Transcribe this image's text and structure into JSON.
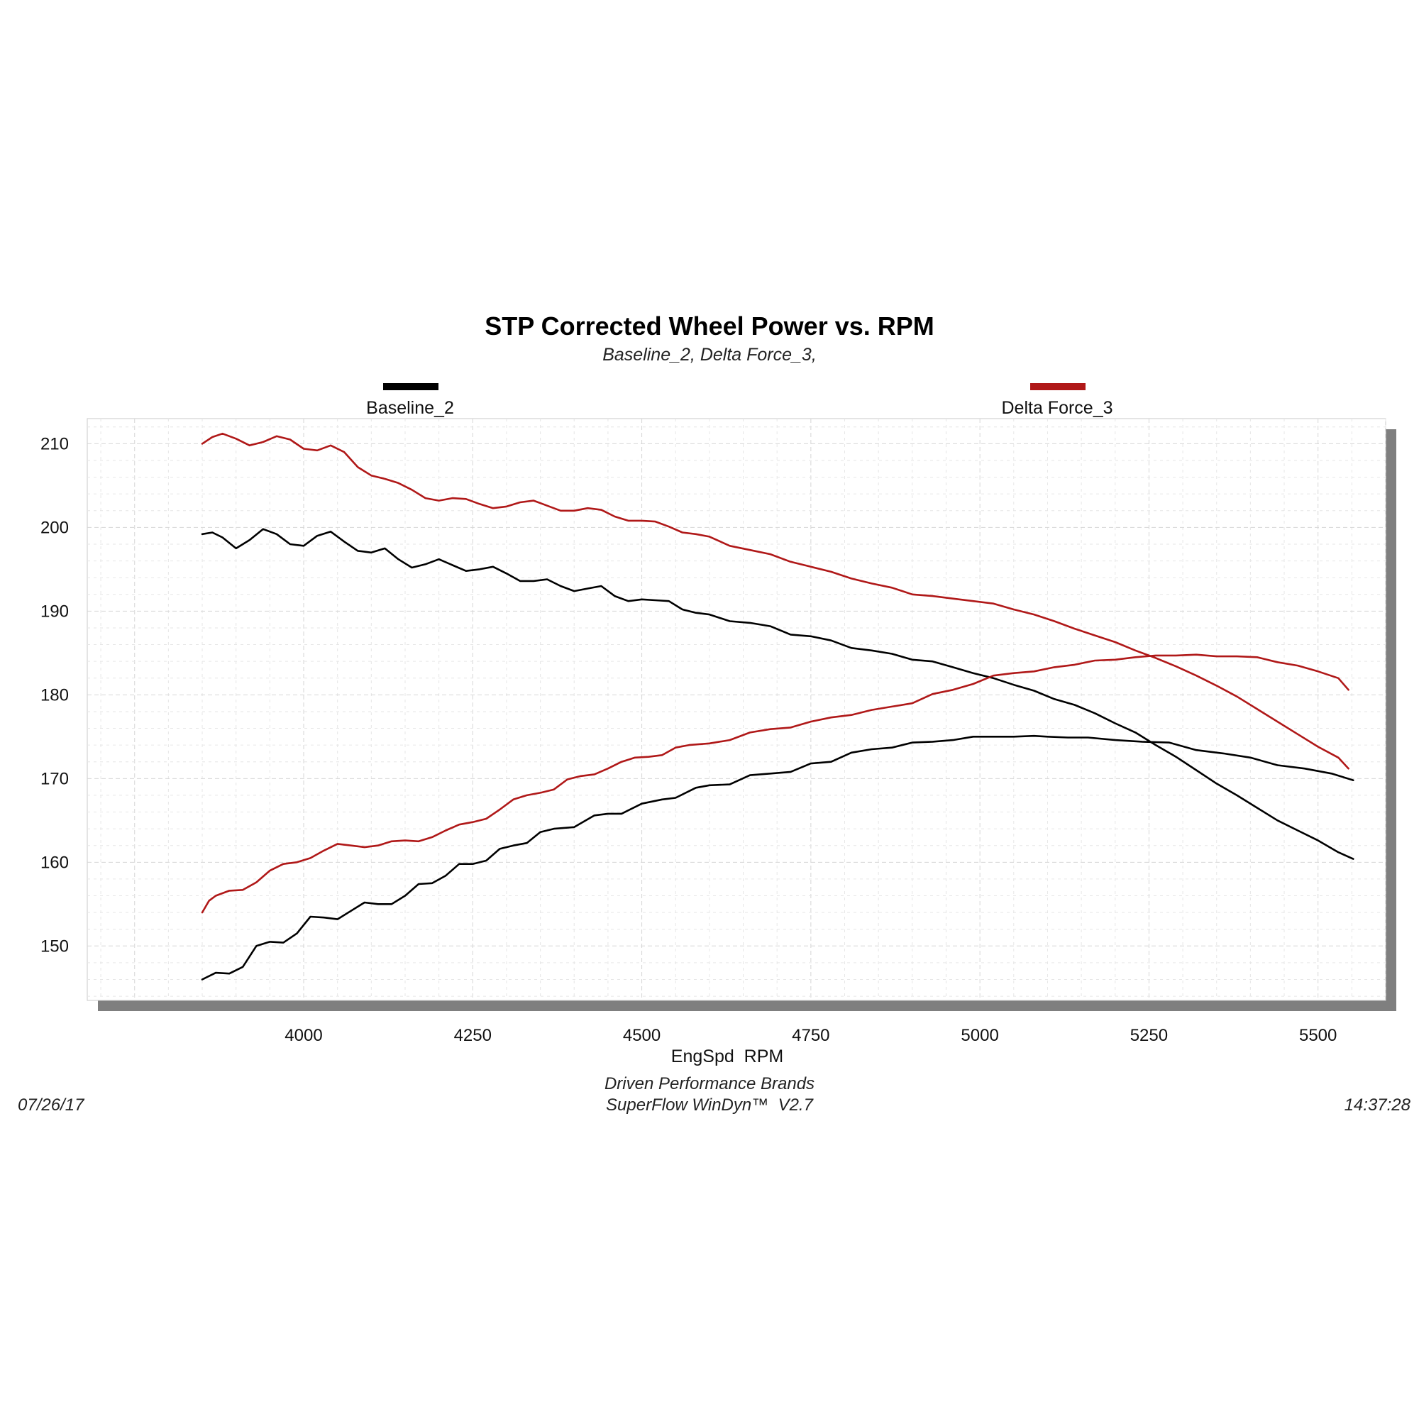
{
  "chart_data": {
    "type": "line",
    "title": "STP Corrected Wheel Power vs. RPM",
    "subtitle": "Baseline_2, Delta Force_3,",
    "xlabel": "EngSpd  RPM",
    "ylabel": "",
    "xlim": [
      3680,
      5600
    ],
    "ylim": [
      143.5,
      213
    ],
    "xticks": [
      4000,
      4250,
      4500,
      4750,
      5000,
      5250,
      5500
    ],
    "yticks": [
      150,
      160,
      170,
      180,
      190,
      200,
      210
    ],
    "grid": true,
    "legend_position": "top",
    "series": [
      {
        "name": "Baseline_2",
        "color": "#000000",
        "curves": [
          {
            "label": "power_up",
            "x": [
              3850,
              3870,
              3890,
              3910,
              3930,
              3950,
              3970,
              3990,
              4010,
              4030,
              4050,
              4070,
              4090,
              4110,
              4130,
              4150,
              4170,
              4190,
              4210,
              4230,
              4250,
              4270,
              4290,
              4310,
              4330,
              4350,
              4370,
              4400,
              4430,
              4450,
              4470,
              4500,
              4530,
              4550,
              4580,
              4600,
              4630,
              4660,
              4690,
              4720,
              4750,
              4780,
              4810,
              4840,
              4870,
              4900,
              4930,
              4960,
              4990,
              5020,
              5050,
              5080,
              5100,
              5130,
              5160,
              5200,
              5240,
              5280,
              5320,
              5360,
              5400,
              5440,
              5480,
              5520,
              5552
            ],
            "y": [
              146.0,
              146.8,
              146.7,
              147.5,
              150.0,
              150.5,
              150.4,
              151.5,
              153.5,
              153.4,
              153.2,
              154.2,
              155.2,
              155.0,
              155.0,
              156.0,
              157.4,
              157.5,
              158.4,
              159.8,
              159.8,
              160.2,
              161.6,
              162.0,
              162.3,
              163.6,
              164.0,
              164.2,
              165.6,
              165.8,
              165.8,
              167.0,
              167.5,
              167.7,
              168.9,
              169.2,
              169.3,
              170.4,
              170.6,
              170.8,
              171.8,
              172.0,
              173.1,
              173.5,
              173.7,
              174.3,
              174.4,
              174.6,
              175.0,
              175.0,
              175.0,
              175.1,
              175.0,
              174.9,
              174.9,
              174.6,
              174.4,
              174.3,
              173.4,
              173.0,
              172.5,
              171.6,
              171.2,
              170.6,
              169.8
            ]
          },
          {
            "label": "torque_down",
            "x": [
              3850,
              3865,
              3880,
              3900,
              3920,
              3940,
              3960,
              3980,
              4000,
              4020,
              4040,
              4060,
              4080,
              4100,
              4120,
              4140,
              4160,
              4180,
              4200,
              4220,
              4240,
              4260,
              4280,
              4300,
              4320,
              4340,
              4360,
              4380,
              4400,
              4420,
              4440,
              4460,
              4480,
              4500,
              4520,
              4540,
              4560,
              4580,
              4600,
              4630,
              4660,
              4690,
              4720,
              4750,
              4780,
              4810,
              4840,
              4870,
              4900,
              4930,
              4960,
              4990,
              5020,
              5050,
              5080,
              5110,
              5140,
              5170,
              5200,
              5230,
              5260,
              5290,
              5320,
              5350,
              5380,
              5410,
              5440,
              5470,
              5500,
              5530,
              5552
            ],
            "y": [
              199.2,
              199.4,
              198.8,
              197.5,
              198.5,
              199.8,
              199.2,
              198.0,
              197.8,
              199.0,
              199.5,
              198.3,
              197.2,
              197.0,
              197.5,
              196.2,
              195.2,
              195.6,
              196.2,
              195.5,
              194.8,
              195.0,
              195.3,
              194.5,
              193.6,
              193.6,
              193.8,
              193.0,
              192.4,
              192.7,
              193.0,
              191.8,
              191.2,
              191.4,
              191.3,
              191.2,
              190.2,
              189.8,
              189.6,
              188.8,
              188.6,
              188.2,
              187.2,
              187.0,
              186.5,
              185.6,
              185.3,
              184.9,
              184.2,
              184.0,
              183.3,
              182.6,
              182.0,
              181.2,
              180.5,
              179.5,
              178.8,
              177.8,
              176.6,
              175.5,
              174.0,
              172.6,
              171.0,
              169.4,
              168.0,
              166.5,
              165.0,
              163.8,
              162.6,
              161.2,
              160.4
            ]
          }
        ]
      },
      {
        "name": "Delta Force_3",
        "color": "#b01818",
        "curves": [
          {
            "label": "power_up",
            "x": [
              3850,
              3860,
              3870,
              3890,
              3910,
              3930,
              3950,
              3970,
              3990,
              4010,
              4030,
              4050,
              4070,
              4090,
              4110,
              4130,
              4150,
              4170,
              4190,
              4210,
              4230,
              4250,
              4270,
              4290,
              4310,
              4330,
              4350,
              4370,
              4390,
              4410,
              4430,
              4450,
              4470,
              4490,
              4510,
              4530,
              4550,
              4570,
              4600,
              4630,
              4660,
              4690,
              4720,
              4750,
              4780,
              4810,
              4840,
              4870,
              4900,
              4930,
              4960,
              4990,
              5020,
              5050,
              5080,
              5110,
              5140,
              5170,
              5200,
              5230,
              5260,
              5290,
              5320,
              5350,
              5380,
              5410,
              5440,
              5470,
              5500,
              5530,
              5545
            ],
            "y": [
              154.0,
              155.4,
              156.0,
              156.6,
              156.7,
              157.6,
              159.0,
              159.8,
              160.0,
              160.5,
              161.4,
              162.2,
              162.0,
              161.8,
              162.0,
              162.5,
              162.6,
              162.5,
              163.0,
              163.8,
              164.5,
              164.8,
              165.2,
              166.3,
              167.5,
              168.0,
              168.3,
              168.7,
              169.9,
              170.3,
              170.5,
              171.2,
              172.0,
              172.5,
              172.6,
              172.8,
              173.7,
              174.0,
              174.2,
              174.6,
              175.5,
              175.9,
              176.1,
              176.8,
              177.3,
              177.6,
              178.2,
              178.6,
              179.0,
              180.1,
              180.6,
              181.3,
              182.3,
              182.6,
              182.8,
              183.3,
              183.6,
              184.1,
              184.2,
              184.5,
              184.7,
              184.7,
              184.8,
              184.6,
              184.6,
              184.5,
              183.9,
              183.5,
              182.8,
              182.0,
              180.6
            ]
          },
          {
            "label": "torque_down",
            "x": [
              3850,
              3865,
              3880,
              3900,
              3920,
              3940,
              3960,
              3980,
              4000,
              4020,
              4040,
              4060,
              4080,
              4100,
              4120,
              4140,
              4160,
              4180,
              4200,
              4220,
              4240,
              4260,
              4280,
              4300,
              4320,
              4340,
              4360,
              4380,
              4400,
              4420,
              4440,
              4460,
              4480,
              4500,
              4520,
              4540,
              4560,
              4580,
              4600,
              4630,
              4660,
              4690,
              4720,
              4750,
              4780,
              4810,
              4840,
              4870,
              4900,
              4930,
              4960,
              4990,
              5020,
              5050,
              5080,
              5110,
              5140,
              5170,
              5200,
              5230,
              5260,
              5290,
              5320,
              5350,
              5380,
              5410,
              5440,
              5470,
              5500,
              5530,
              5545
            ],
            "y": [
              210.0,
              210.8,
              211.2,
              210.6,
              209.8,
              210.2,
              210.9,
              210.5,
              209.4,
              209.2,
              209.8,
              209.0,
              207.2,
              206.2,
              205.8,
              205.3,
              204.5,
              203.5,
              203.2,
              203.5,
              203.4,
              202.8,
              202.3,
              202.5,
              203.0,
              203.2,
              202.6,
              202.0,
              202.0,
              202.3,
              202.1,
              201.3,
              200.8,
              200.8,
              200.7,
              200.1,
              199.4,
              199.2,
              198.9,
              197.8,
              197.3,
              196.8,
              195.9,
              195.3,
              194.7,
              193.9,
              193.3,
              192.8,
              192.0,
              191.8,
              191.5,
              191.2,
              190.9,
              190.2,
              189.6,
              188.8,
              187.9,
              187.1,
              186.3,
              185.3,
              184.4,
              183.4,
              182.3,
              181.1,
              179.8,
              178.3,
              176.8,
              175.3,
              173.8,
              172.5,
              171.2
            ]
          }
        ]
      }
    ]
  },
  "footer": {
    "company": "Driven Performance Brands",
    "software": "SuperFlow WinDyn™  V2.7",
    "date": "07/26/17",
    "time": "14:37:28"
  }
}
